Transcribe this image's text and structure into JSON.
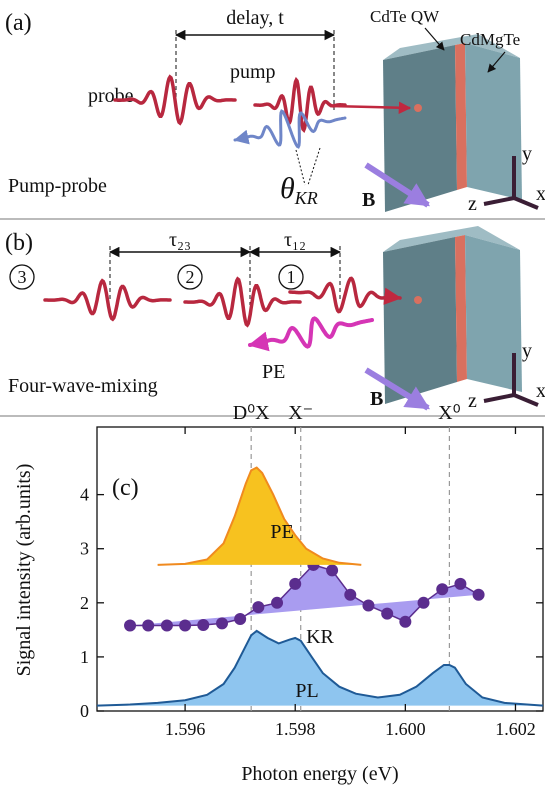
{
  "panel_a": {
    "label": "(a)",
    "delay": "delay, t",
    "qw": "CdTe QW",
    "barrier": "CdMgTe",
    "probe": "probe",
    "pump": "pump",
    "theta": "θ",
    "theta_sub": "KR",
    "title": "Pump-probe",
    "field": "B",
    "axes": [
      "x",
      "y",
      "z"
    ]
  },
  "panel_b": {
    "label": "(b)",
    "tau23": "τ₂₃",
    "tau12": "τ₁₂",
    "pulses": [
      "3",
      "2",
      "1"
    ],
    "echo": "PE",
    "title": "Four-wave-mixing",
    "field": "B",
    "axes": [
      "x",
      "y",
      "z"
    ]
  },
  "chart_data": {
    "type": "line",
    "panel_label": "(c)",
    "xlabel": "Photon energy (eV)",
    "ylabel": "Signal intensity (arb.units)",
    "xlim": [
      1.5944,
      1.6025
    ],
    "ylim": [
      0,
      5.25
    ],
    "xticks": [
      1.596,
      1.598,
      {
        "value": 1.6,
        "label": "1.600"
      },
      1.602
    ],
    "yticks": [
      0,
      1,
      2,
      3,
      4
    ],
    "annotations": [
      {
        "label": "D⁰X",
        "x": 1.5972
      },
      {
        "label": "X⁻",
        "x": 1.5981
      },
      {
        "label": "X⁰",
        "x": 1.6008
      }
    ],
    "series": [
      {
        "name": "PL",
        "color": "#1f5a96",
        "fill": "#8ec5ef",
        "markers": false,
        "x": [
          1.5944,
          1.595,
          1.5955,
          1.596,
          1.5964,
          1.5967,
          1.5969,
          1.5971,
          1.5972,
          1.5973,
          1.5975,
          1.5977,
          1.5979,
          1.598,
          1.5981,
          1.5983,
          1.5985,
          1.5988,
          1.5991,
          1.5995,
          1.5999,
          1.6002,
          1.6005,
          1.6007,
          1.6008,
          1.6009,
          1.6011,
          1.6014,
          1.6018,
          1.6025
        ],
        "values": [
          0.1,
          0.12,
          0.15,
          0.2,
          0.3,
          0.5,
          0.8,
          1.2,
          1.4,
          1.48,
          1.35,
          1.25,
          1.32,
          1.35,
          1.3,
          1.0,
          0.7,
          0.45,
          0.32,
          0.25,
          0.3,
          0.45,
          0.7,
          0.85,
          0.85,
          0.8,
          0.5,
          0.25,
          0.15,
          0.1
        ]
      },
      {
        "name": "KR",
        "color": "#5b2d8e",
        "fill": "#a99cf0",
        "markers": true,
        "x": [
          1.595,
          1.59533,
          1.59567,
          1.596,
          1.59633,
          1.59667,
          1.597,
          1.59733,
          1.59767,
          1.598,
          1.59833,
          1.59867,
          1.599,
          1.59933,
          1.59967,
          1.6,
          1.60033,
          1.60067,
          1.601,
          1.60133
        ],
        "values": [
          1.58,
          1.58,
          1.58,
          1.58,
          1.59,
          1.62,
          1.7,
          1.92,
          2.0,
          2.35,
          2.7,
          2.6,
          2.15,
          1.95,
          1.8,
          1.65,
          2.0,
          2.25,
          2.35,
          2.15
        ]
      },
      {
        "name": "PE",
        "color": "#f08a1f",
        "fill": "#f7c21f",
        "markers": false,
        "x": [
          1.5955,
          1.596,
          1.5964,
          1.5967,
          1.5969,
          1.5971,
          1.5972,
          1.5973,
          1.5974,
          1.5976,
          1.5978,
          1.598,
          1.5982,
          1.5985,
          1.5988,
          1.5992
        ],
        "values": [
          2.7,
          2.72,
          2.8,
          3.1,
          3.6,
          4.2,
          4.45,
          4.5,
          4.4,
          4.0,
          3.55,
          3.25,
          3.0,
          2.82,
          2.74,
          2.7
        ]
      }
    ]
  }
}
